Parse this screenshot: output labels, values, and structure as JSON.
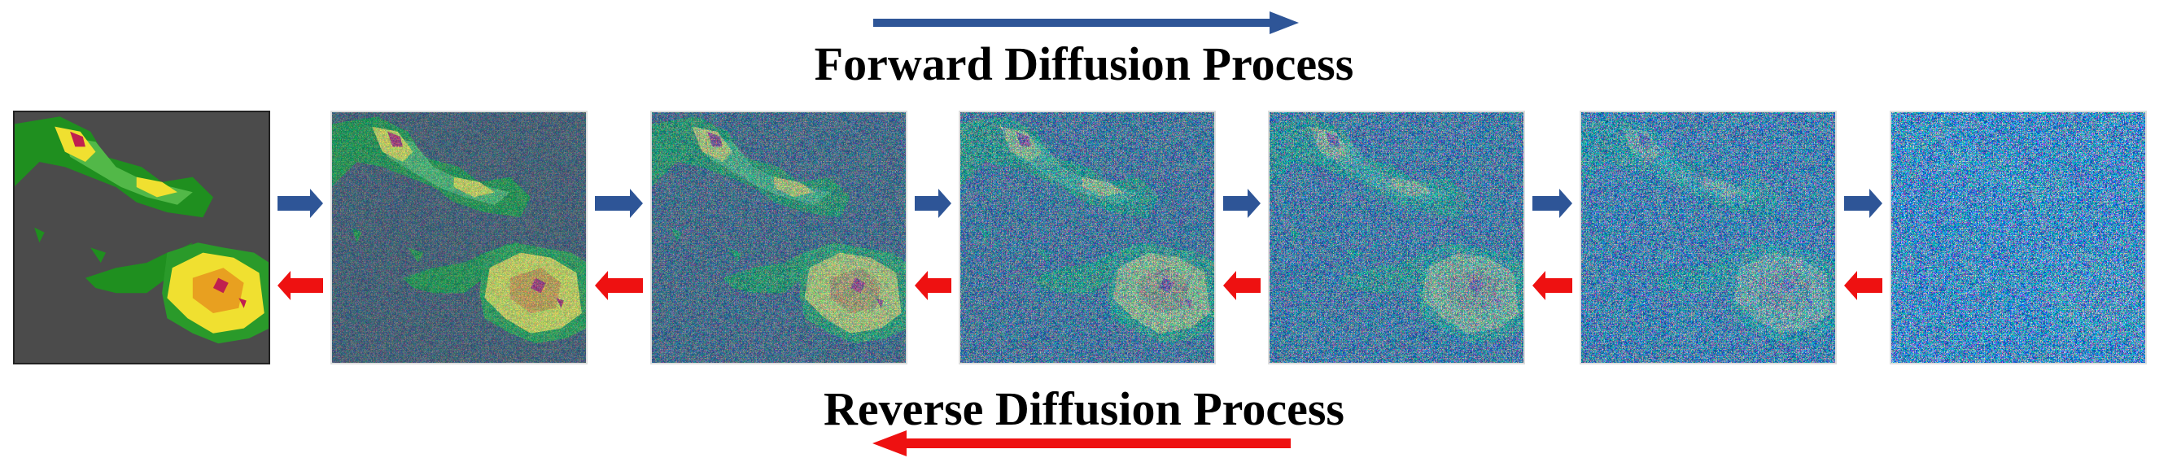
{
  "forward": {
    "label": "Forward Diffusion Process"
  },
  "reverse": {
    "label": "Reverse Diffusion Process"
  }
}
